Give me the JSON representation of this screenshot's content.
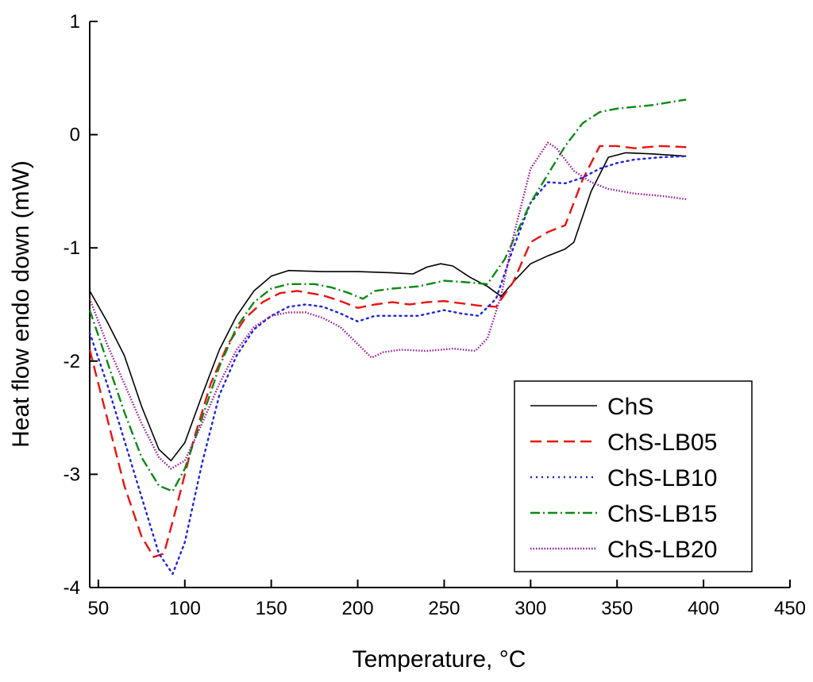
{
  "chart_data": {
    "type": "line",
    "title": "",
    "xlabel": "Temperature, °C",
    "ylabel": "Heat flow endo down (mW)",
    "xlim": [
      45,
      450
    ],
    "ylim": [
      -4,
      1
    ],
    "xticks": [
      50,
      100,
      150,
      200,
      250,
      300,
      350,
      400,
      450
    ],
    "yticks": [
      -4,
      -3,
      -2,
      -1,
      0,
      1
    ],
    "grid": false,
    "legend_position": "bottom-right",
    "series": [
      {
        "name": "ChS",
        "color": "#000000",
        "style": "solid",
        "points": [
          [
            45,
            -1.38
          ],
          [
            55,
            -1.65
          ],
          [
            65,
            -1.95
          ],
          [
            75,
            -2.4
          ],
          [
            85,
            -2.78
          ],
          [
            92,
            -2.88
          ],
          [
            100,
            -2.72
          ],
          [
            110,
            -2.3
          ],
          [
            120,
            -1.9
          ],
          [
            130,
            -1.6
          ],
          [
            140,
            -1.38
          ],
          [
            150,
            -1.25
          ],
          [
            160,
            -1.2
          ],
          [
            180,
            -1.21
          ],
          [
            200,
            -1.21
          ],
          [
            220,
            -1.22
          ],
          [
            232,
            -1.23
          ],
          [
            240,
            -1.17
          ],
          [
            248,
            -1.14
          ],
          [
            255,
            -1.16
          ],
          [
            265,
            -1.26
          ],
          [
            275,
            -1.34
          ],
          [
            283,
            -1.43
          ],
          [
            290,
            -1.3
          ],
          [
            300,
            -1.14
          ],
          [
            310,
            -1.07
          ],
          [
            320,
            -1.01
          ],
          [
            325,
            -0.95
          ],
          [
            335,
            -0.5
          ],
          [
            345,
            -0.2
          ],
          [
            355,
            -0.16
          ],
          [
            370,
            -0.17
          ],
          [
            390,
            -0.19
          ]
        ]
      },
      {
        "name": "ChS-LB05",
        "color": "#e8140f",
        "style": "dashed",
        "points": [
          [
            45,
            -1.9
          ],
          [
            55,
            -2.5
          ],
          [
            65,
            -3.1
          ],
          [
            75,
            -3.55
          ],
          [
            82,
            -3.73
          ],
          [
            88,
            -3.7
          ],
          [
            95,
            -3.3
          ],
          [
            105,
            -2.7
          ],
          [
            115,
            -2.2
          ],
          [
            125,
            -1.85
          ],
          [
            135,
            -1.62
          ],
          [
            145,
            -1.48
          ],
          [
            155,
            -1.4
          ],
          [
            165,
            -1.38
          ],
          [
            180,
            -1.42
          ],
          [
            190,
            -1.47
          ],
          [
            200,
            -1.53
          ],
          [
            210,
            -1.5
          ],
          [
            220,
            -1.48
          ],
          [
            230,
            -1.5
          ],
          [
            240,
            -1.48
          ],
          [
            250,
            -1.47
          ],
          [
            260,
            -1.49
          ],
          [
            270,
            -1.51
          ],
          [
            280,
            -1.52
          ],
          [
            290,
            -1.3
          ],
          [
            300,
            -0.95
          ],
          [
            310,
            -0.86
          ],
          [
            320,
            -0.8
          ],
          [
            330,
            -0.4
          ],
          [
            340,
            -0.1
          ],
          [
            350,
            -0.1
          ],
          [
            360,
            -0.12
          ],
          [
            375,
            -0.1
          ],
          [
            390,
            -0.11
          ]
        ]
      },
      {
        "name": "ChS-LB10",
        "color": "#1d24e0",
        "style": "dotted",
        "points": [
          [
            45,
            -1.75
          ],
          [
            55,
            -2.2
          ],
          [
            65,
            -2.7
          ],
          [
            75,
            -3.2
          ],
          [
            85,
            -3.7
          ],
          [
            93,
            -3.88
          ],
          [
            100,
            -3.6
          ],
          [
            110,
            -2.9
          ],
          [
            120,
            -2.3
          ],
          [
            130,
            -1.95
          ],
          [
            140,
            -1.72
          ],
          [
            150,
            -1.6
          ],
          [
            160,
            -1.52
          ],
          [
            170,
            -1.5
          ],
          [
            180,
            -1.52
          ],
          [
            190,
            -1.58
          ],
          [
            200,
            -1.65
          ],
          [
            210,
            -1.6
          ],
          [
            220,
            -1.6
          ],
          [
            235,
            -1.6
          ],
          [
            250,
            -1.55
          ],
          [
            260,
            -1.58
          ],
          [
            270,
            -1.6
          ],
          [
            280,
            -1.45
          ],
          [
            290,
            -1.0
          ],
          [
            300,
            -0.6
          ],
          [
            310,
            -0.42
          ],
          [
            320,
            -0.43
          ],
          [
            330,
            -0.38
          ],
          [
            340,
            -0.3
          ],
          [
            350,
            -0.25
          ],
          [
            360,
            -0.22
          ],
          [
            375,
            -0.2
          ],
          [
            390,
            -0.19
          ]
        ]
      },
      {
        "name": "ChS-LB15",
        "color": "#0a8a16",
        "style": "dashdot",
        "points": [
          [
            45,
            -1.55
          ],
          [
            55,
            -2.0
          ],
          [
            65,
            -2.45
          ],
          [
            75,
            -2.85
          ],
          [
            85,
            -3.1
          ],
          [
            93,
            -3.15
          ],
          [
            100,
            -2.95
          ],
          [
            110,
            -2.5
          ],
          [
            120,
            -2.05
          ],
          [
            130,
            -1.7
          ],
          [
            140,
            -1.48
          ],
          [
            150,
            -1.36
          ],
          [
            160,
            -1.32
          ],
          [
            175,
            -1.32
          ],
          [
            185,
            -1.35
          ],
          [
            195,
            -1.4
          ],
          [
            203,
            -1.45
          ],
          [
            210,
            -1.38
          ],
          [
            220,
            -1.36
          ],
          [
            235,
            -1.34
          ],
          [
            250,
            -1.29
          ],
          [
            260,
            -1.3
          ],
          [
            275,
            -1.32
          ],
          [
            285,
            -1.1
          ],
          [
            300,
            -0.6
          ],
          [
            310,
            -0.35
          ],
          [
            320,
            -0.1
          ],
          [
            330,
            0.1
          ],
          [
            340,
            0.2
          ],
          [
            350,
            0.23
          ],
          [
            370,
            0.26
          ],
          [
            390,
            0.31
          ]
        ]
      },
      {
        "name": "ChS-LB20",
        "color": "#9b169b",
        "style": "densedot",
        "points": [
          [
            45,
            -1.45
          ],
          [
            55,
            -1.85
          ],
          [
            65,
            -2.2
          ],
          [
            75,
            -2.55
          ],
          [
            85,
            -2.85
          ],
          [
            92,
            -2.95
          ],
          [
            100,
            -2.88
          ],
          [
            110,
            -2.55
          ],
          [
            120,
            -2.2
          ],
          [
            130,
            -1.9
          ],
          [
            140,
            -1.7
          ],
          [
            150,
            -1.6
          ],
          [
            160,
            -1.57
          ],
          [
            170,
            -1.57
          ],
          [
            180,
            -1.62
          ],
          [
            190,
            -1.7
          ],
          [
            200,
            -1.85
          ],
          [
            208,
            -1.97
          ],
          [
            215,
            -1.92
          ],
          [
            225,
            -1.9
          ],
          [
            240,
            -1.91
          ],
          [
            255,
            -1.89
          ],
          [
            268,
            -1.91
          ],
          [
            275,
            -1.8
          ],
          [
            283,
            -1.42
          ],
          [
            290,
            -0.9
          ],
          [
            300,
            -0.3
          ],
          [
            310,
            -0.07
          ],
          [
            315,
            -0.12
          ],
          [
            325,
            -0.32
          ],
          [
            335,
            -0.42
          ],
          [
            345,
            -0.48
          ],
          [
            360,
            -0.52
          ],
          [
            375,
            -0.54
          ],
          [
            390,
            -0.57
          ]
        ]
      }
    ]
  }
}
